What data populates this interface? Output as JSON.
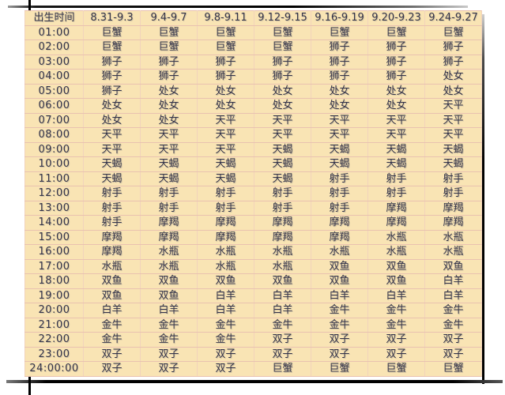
{
  "colors": {
    "page_bg": "#ffffff",
    "table_bg": "#f9e4b4",
    "grid_line": "#e9c2b0",
    "text": "#34344a",
    "frame_line": "#000000"
  },
  "chart_data": {
    "type": "table",
    "columns": [
      "出生时间",
      "8.31-9.3",
      "9.4-9.7",
      "9.8-9.11",
      "9.12-9.15",
      "9.16-9.19",
      "9.20-9.23",
      "9.24-9.27"
    ],
    "rows": [
      {
        "time": "01:00",
        "signs": [
          "巨蟹",
          "巨蟹",
          "巨蟹",
          "巨蟹",
          "巨蟹",
          "巨蟹",
          "巨蟹"
        ]
      },
      {
        "time": "02:00",
        "signs": [
          "巨蟹",
          "巨蟹",
          "巨蟹",
          "巨蟹",
          "狮子",
          "狮子",
          "狮子"
        ]
      },
      {
        "time": "03:00",
        "signs": [
          "狮子",
          "狮子",
          "狮子",
          "狮子",
          "狮子",
          "狮子",
          "狮子"
        ]
      },
      {
        "time": "04:00",
        "signs": [
          "狮子",
          "狮子",
          "狮子",
          "狮子",
          "狮子",
          "狮子",
          "处女"
        ]
      },
      {
        "time": "05:00",
        "signs": [
          "狮子",
          "处女",
          "处女",
          "处女",
          "处女",
          "处女",
          "处女"
        ]
      },
      {
        "time": "06:00",
        "signs": [
          "处女",
          "处女",
          "处女",
          "处女",
          "处女",
          "处女",
          "天平"
        ]
      },
      {
        "time": "07:00",
        "signs": [
          "处女",
          "处女",
          "天平",
          "天平",
          "天平",
          "天平",
          "天平"
        ]
      },
      {
        "time": "08:00",
        "signs": [
          "天平",
          "天平",
          "天平",
          "天平",
          "天平",
          "天平",
          "天平"
        ]
      },
      {
        "time": "09:00",
        "signs": [
          "天平",
          "天平",
          "天平",
          "天蝎",
          "天蝎",
          "天蝎",
          "天蝎"
        ]
      },
      {
        "time": "10:00",
        "signs": [
          "天蝎",
          "天蝎",
          "天蝎",
          "天蝎",
          "天蝎",
          "天蝎",
          "天蝎"
        ]
      },
      {
        "time": "11:00",
        "signs": [
          "天蝎",
          "天蝎",
          "天蝎",
          "天蝎",
          "射手",
          "射手",
          "射手"
        ]
      },
      {
        "time": "12:00",
        "signs": [
          "射手",
          "射手",
          "射手",
          "射手",
          "射手",
          "射手",
          "射手"
        ]
      },
      {
        "time": "13:00",
        "signs": [
          "射手",
          "射手",
          "射手",
          "射手",
          "射手",
          "摩羯",
          "摩羯"
        ]
      },
      {
        "time": "14:00",
        "signs": [
          "射手",
          "摩羯",
          "摩羯",
          "摩羯",
          "摩羯",
          "摩羯",
          "摩羯"
        ]
      },
      {
        "time": "15:00",
        "signs": [
          "摩羯",
          "摩羯",
          "摩羯",
          "摩羯",
          "摩羯",
          "水瓶",
          "水瓶"
        ]
      },
      {
        "time": "16:00",
        "signs": [
          "摩羯",
          "水瓶",
          "水瓶",
          "水瓶",
          "水瓶",
          "水瓶",
          "水瓶"
        ]
      },
      {
        "time": "17:00",
        "signs": [
          "水瓶",
          "水瓶",
          "水瓶",
          "水瓶",
          "双鱼",
          "双鱼",
          "双鱼"
        ]
      },
      {
        "time": "18:00",
        "signs": [
          "双鱼",
          "双鱼",
          "双鱼",
          "双鱼",
          "双鱼",
          "双鱼",
          "白羊"
        ]
      },
      {
        "time": "19:00",
        "signs": [
          "双鱼",
          "双鱼",
          "白羊",
          "白羊",
          "白羊",
          "白羊",
          "白羊"
        ]
      },
      {
        "time": "20:00",
        "signs": [
          "白羊",
          "白羊",
          "白羊",
          "白羊",
          "金牛",
          "金牛",
          "金牛"
        ]
      },
      {
        "time": "21:00",
        "signs": [
          "金牛",
          "金牛",
          "金牛",
          "金牛",
          "金牛",
          "金牛",
          "金牛"
        ]
      },
      {
        "time": "22:00",
        "signs": [
          "金牛",
          "金牛",
          "金牛",
          "双子",
          "双子",
          "双子",
          "双子"
        ]
      },
      {
        "time": "23:00",
        "signs": [
          "双子",
          "双子",
          "双子",
          "双子",
          "双子",
          "双子",
          "双子"
        ]
      },
      {
        "time": "24:00:00",
        "signs": [
          "双子",
          "双子",
          "双子",
          "巨蟹",
          "巨蟹",
          "巨蟹",
          "巨蟹"
        ]
      }
    ]
  }
}
